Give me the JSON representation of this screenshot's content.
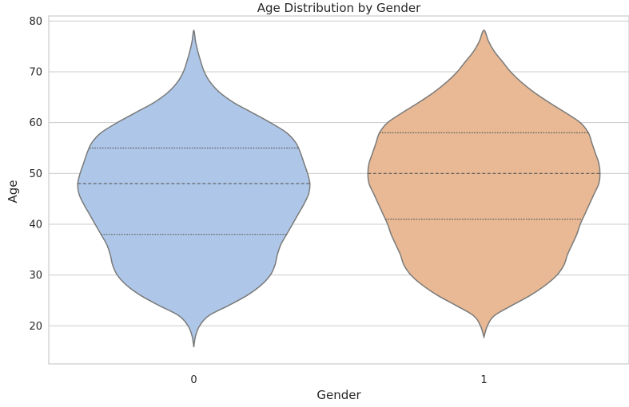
{
  "chart_data": {
    "type": "violin",
    "title": "Age Distribution by Gender",
    "xlabel": "Gender",
    "ylabel": "Age",
    "categories": [
      "0",
      "1"
    ],
    "ylim": [
      12.5,
      81
    ],
    "yticks": [
      20,
      30,
      40,
      50,
      60,
      70,
      80
    ],
    "grid": true,
    "colors": [
      "#aec7e8",
      "#e8b994"
    ],
    "outline_color": "#7a7a7a",
    "violins": [
      {
        "category": "0",
        "color": "#aec7e8",
        "quartiles": [
          38,
          48,
          55
        ],
        "profile": [
          [
            15.8,
            0.0
          ],
          [
            18,
            0.015
          ],
          [
            20,
            0.05
          ],
          [
            22,
            0.13
          ],
          [
            24,
            0.3
          ],
          [
            26,
            0.46
          ],
          [
            28,
            0.58
          ],
          [
            30,
            0.66
          ],
          [
            32,
            0.7
          ],
          [
            34,
            0.72
          ],
          [
            36,
            0.75
          ],
          [
            38,
            0.8
          ],
          [
            40,
            0.85
          ],
          [
            42,
            0.9
          ],
          [
            44,
            0.95
          ],
          [
            46,
            0.99
          ],
          [
            48,
            1.0
          ],
          [
            50,
            0.98
          ],
          [
            52,
            0.95
          ],
          [
            54,
            0.92
          ],
          [
            56,
            0.88
          ],
          [
            58,
            0.8
          ],
          [
            60,
            0.66
          ],
          [
            62,
            0.5
          ],
          [
            64,
            0.34
          ],
          [
            66,
            0.22
          ],
          [
            68,
            0.14
          ],
          [
            70,
            0.09
          ],
          [
            72,
            0.06
          ],
          [
            74,
            0.035
          ],
          [
            76,
            0.015
          ],
          [
            78.2,
            0.0
          ]
        ]
      },
      {
        "category": "1",
        "color": "#e8b994",
        "quartiles": [
          41,
          50,
          58
        ],
        "profile": [
          [
            17.8,
            0.0
          ],
          [
            20,
            0.03
          ],
          [
            22,
            0.09
          ],
          [
            24,
            0.24
          ],
          [
            26,
            0.4
          ],
          [
            28,
            0.53
          ],
          [
            30,
            0.63
          ],
          [
            32,
            0.69
          ],
          [
            34,
            0.72
          ],
          [
            36,
            0.76
          ],
          [
            38,
            0.8
          ],
          [
            40,
            0.83
          ],
          [
            42,
            0.87
          ],
          [
            44,
            0.91
          ],
          [
            46,
            0.95
          ],
          [
            48,
            0.99
          ],
          [
            50,
            1.0
          ],
          [
            52,
            0.99
          ],
          [
            54,
            0.96
          ],
          [
            56,
            0.93
          ],
          [
            58,
            0.9
          ],
          [
            60,
            0.83
          ],
          [
            62,
            0.7
          ],
          [
            64,
            0.56
          ],
          [
            66,
            0.43
          ],
          [
            68,
            0.32
          ],
          [
            70,
            0.23
          ],
          [
            72,
            0.16
          ],
          [
            74,
            0.09
          ],
          [
            76,
            0.04
          ],
          [
            78.2,
            0.0
          ]
        ]
      }
    ]
  }
}
